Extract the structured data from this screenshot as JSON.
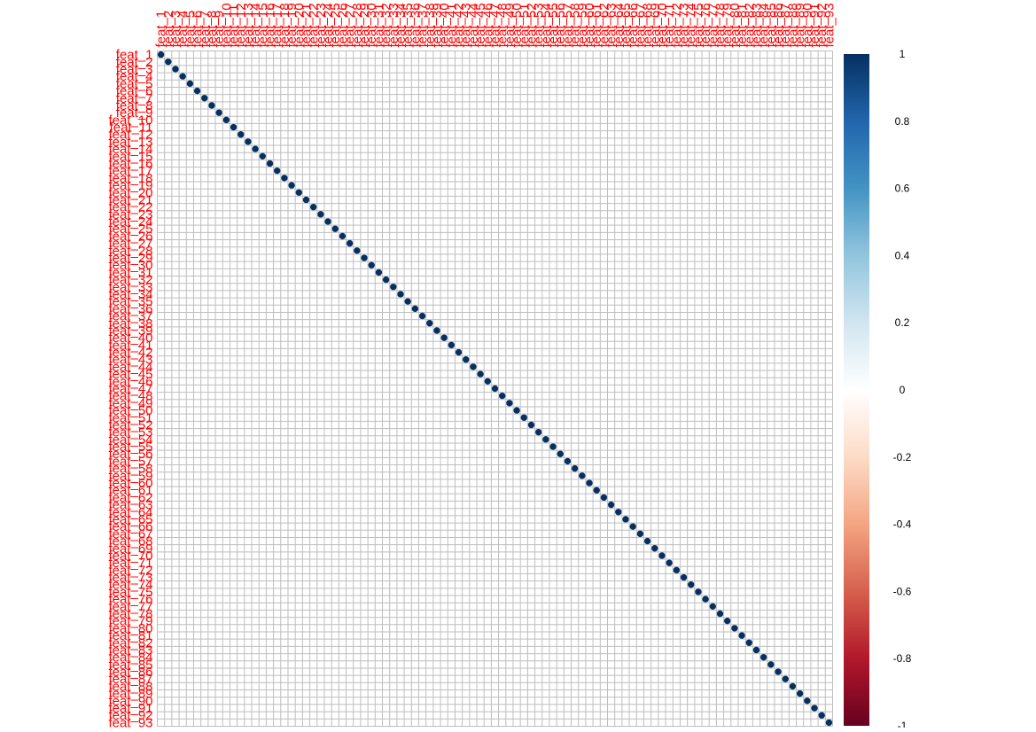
{
  "chart_data": {
    "type": "heatmap",
    "variables": [
      "feat_1",
      "feat_2",
      "feat_3",
      "feat_4",
      "feat_5",
      "feat_6",
      "feat_7",
      "feat_8",
      "feat_9",
      "feat_10",
      "feat_11",
      "feat_12",
      "feat_13",
      "feat_14",
      "feat_15",
      "feat_16",
      "feat_17",
      "feat_18",
      "feat_19",
      "feat_20",
      "feat_21",
      "feat_22",
      "feat_23",
      "feat_24",
      "feat_25",
      "feat_26",
      "feat_27",
      "feat_28",
      "feat_29",
      "feat_30",
      "feat_31",
      "feat_32",
      "feat_33",
      "feat_34",
      "feat_35",
      "feat_36",
      "feat_37",
      "feat_38",
      "feat_39",
      "feat_40",
      "feat_41",
      "feat_42",
      "feat_43",
      "feat_44",
      "feat_45",
      "feat_46",
      "feat_47",
      "feat_48",
      "feat_49",
      "feat_50",
      "feat_51",
      "feat_52",
      "feat_53",
      "feat_54",
      "feat_55",
      "feat_56",
      "feat_57",
      "feat_58",
      "feat_59",
      "feat_60",
      "feat_61",
      "feat_62",
      "feat_63",
      "feat_64",
      "feat_65",
      "feat_66",
      "feat_67",
      "feat_68",
      "feat_69",
      "feat_70",
      "feat_71",
      "feat_72",
      "feat_73",
      "feat_74",
      "feat_75",
      "feat_76",
      "feat_77",
      "feat_78",
      "feat_79",
      "feat_80",
      "feat_81",
      "feat_82",
      "feat_83",
      "feat_84",
      "feat_85",
      "feat_86",
      "feat_87",
      "feat_88",
      "feat_89",
      "feat_90",
      "feat_91",
      "feat_92",
      "feat_93"
    ],
    "diagonal_value": 1,
    "off_diagonal_value": 0,
    "colorbar": {
      "min": -1,
      "max": 1,
      "ticks": [
        1,
        0.8,
        0.6,
        0.4,
        0.2,
        0,
        -0.2,
        -0.4,
        -0.6,
        -0.8,
        -1
      ],
      "tick_labels": [
        "1",
        "0.8",
        "0.6",
        "0.4",
        "0.2",
        "0",
        "-0.2",
        "-0.4",
        "-0.6",
        "-0.8",
        "-1"
      ],
      "color_stops": [
        {
          "value": 1,
          "color": "#053061"
        },
        {
          "value": 0.8,
          "color": "#2166ac"
        },
        {
          "value": 0.6,
          "color": "#4393c3"
        },
        {
          "value": 0.4,
          "color": "#92c5de"
        },
        {
          "value": 0.2,
          "color": "#d1e5f0"
        },
        {
          "value": 0,
          "color": "#ffffff"
        },
        {
          "value": -0.2,
          "color": "#fddbc7"
        },
        {
          "value": -0.4,
          "color": "#f4a582"
        },
        {
          "value": -0.6,
          "color": "#d6604d"
        },
        {
          "value": -0.8,
          "color": "#b2182b"
        },
        {
          "value": -1,
          "color": "#67001f"
        }
      ]
    },
    "label_color": "#ff0000",
    "grid_color": "#bebebe",
    "grid": true,
    "marker": "circle",
    "legend_placement": "right"
  }
}
